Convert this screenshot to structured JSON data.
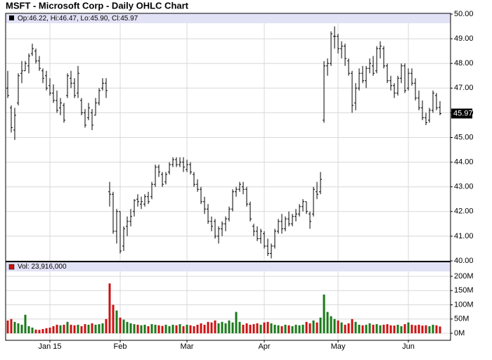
{
  "chart_data": {
    "type": "ohlc",
    "title": "MSFT - Microsoft Corp - Daily OHLC Chart",
    "ohlc_label": "Op:46.22, Hi:46.47, Lo:45.90, Cl:45.97",
    "volume_label": "Vol: 23,916,000",
    "xlim": [
      -0.6,
      126
    ],
    "xticks": [
      {
        "value": 12,
        "label": "Jan 15"
      },
      {
        "value": 32,
        "label": "Feb"
      },
      {
        "value": 51,
        "label": "Mar"
      },
      {
        "value": 73,
        "label": "Apr"
      },
      {
        "value": 94,
        "label": "May"
      },
      {
        "value": 114,
        "label": "Jun"
      }
    ],
    "ylim": [
      40,
      50
    ],
    "yticks": [
      {
        "value": 40,
        "label": "40.00"
      },
      {
        "value": 41,
        "label": "41.00"
      },
      {
        "value": 42,
        "label": "42.00"
      },
      {
        "value": 43,
        "label": "43.00"
      },
      {
        "value": 44,
        "label": "44.00"
      },
      {
        "value": 45,
        "label": "45.00"
      },
      {
        "value": 46,
        "label": "46.00"
      },
      {
        "value": 47,
        "label": "47.00"
      },
      {
        "value": 48,
        "label": "48.00"
      },
      {
        "value": 49,
        "label": "49.00"
      },
      {
        "value": 50,
        "label": "50.00"
      }
    ],
    "y2lim": [
      0,
      200
    ],
    "y2ticks": [
      {
        "value": 0,
        "label": "0M"
      },
      {
        "value": 50,
        "label": "50M"
      },
      {
        "value": 100,
        "label": "100M"
      },
      {
        "value": 150,
        "label": "150M"
      },
      {
        "value": 200,
        "label": "200M"
      }
    ],
    "grid": true,
    "bar_color": "#000000",
    "up_color": "#1a7a1a",
    "down_color": "#cc1111",
    "ohlc": [
      [
        47.0,
        47.7,
        46.6,
        46.7
      ],
      [
        46.2,
        46.3,
        45.2,
        45.4
      ],
      [
        45.3,
        46.2,
        44.9,
        45.9
      ],
      [
        46.4,
        47.6,
        46.3,
        47.5
      ],
      [
        47.6,
        48.1,
        47.2,
        47.7
      ],
      [
        47.7,
        48.1,
        47.7,
        48.0
      ],
      [
        47.9,
        48.4,
        47.6,
        48.3
      ],
      [
        48.4,
        48.8,
        48.3,
        48.6
      ],
      [
        48.5,
        48.6,
        48.0,
        48.1
      ],
      [
        48.1,
        48.3,
        47.7,
        47.8
      ],
      [
        47.7,
        47.8,
        47.2,
        47.4
      ],
      [
        47.5,
        47.7,
        46.9,
        47.0
      ],
      [
        47.1,
        47.4,
        46.7,
        46.8
      ],
      [
        46.8,
        47.15,
        46.4,
        46.5
      ],
      [
        46.5,
        46.9,
        46.0,
        46.1
      ],
      [
        46.2,
        46.6,
        45.9,
        46.4
      ],
      [
        46.3,
        46.4,
        45.6,
        45.7
      ],
      [
        46.7,
        47.6,
        46.6,
        47.5
      ],
      [
        47.4,
        47.7,
        47.0,
        47.2
      ],
      [
        47.2,
        47.4,
        46.6,
        46.7
      ],
      [
        46.8,
        47.9,
        46.6,
        47.6
      ],
      [
        46.5,
        46.6,
        45.9,
        46.0
      ],
      [
        46.0,
        46.15,
        45.4,
        45.5
      ],
      [
        45.8,
        46.4,
        45.7,
        46.2
      ],
      [
        46.0,
        46.15,
        45.3,
        45.5
      ],
      [
        45.9,
        46.6,
        45.9,
        46.4
      ],
      [
        46.4,
        47.0,
        46.3,
        46.9
      ],
      [
        47.0,
        47.4,
        46.9,
        47.2
      ],
      [
        47.2,
        47.4,
        46.6,
        46.9
      ],
      [
        42.8,
        43.2,
        42.2,
        42.7
      ],
      [
        42.7,
        42.8,
        41.1,
        41.2
      ],
      [
        41.2,
        42.1,
        40.7,
        42.0
      ],
      [
        42.0,
        42.0,
        40.3,
        40.4
      ],
      [
        40.6,
        41.4,
        40.4,
        41.3
      ],
      [
        41.4,
        41.8,
        41.0,
        41.6
      ],
      [
        41.6,
        42.1,
        41.4,
        41.8
      ],
      [
        42.0,
        42.5,
        41.8,
        42.45
      ],
      [
        42.5,
        42.7,
        42.2,
        42.4
      ],
      [
        42.3,
        42.6,
        42.1,
        42.4
      ],
      [
        42.3,
        42.7,
        42.2,
        42.6
      ],
      [
        42.6,
        42.8,
        42.3,
        42.4
      ],
      [
        42.6,
        43.2,
        42.5,
        43.1
      ],
      [
        43.1,
        43.9,
        43.0,
        43.8
      ],
      [
        43.8,
        43.9,
        43.4,
        43.6
      ],
      [
        43.5,
        43.6,
        43.0,
        43.1
      ],
      [
        43.2,
        43.6,
        43.1,
        43.5
      ],
      [
        43.6,
        44.0,
        43.5,
        43.9
      ],
      [
        43.9,
        44.2,
        43.8,
        44.1
      ],
      [
        44.1,
        44.2,
        43.8,
        43.9
      ],
      [
        43.9,
        44.2,
        43.8,
        44.0
      ],
      [
        44.0,
        44.2,
        43.6,
        43.8
      ],
      [
        43.7,
        44.1,
        43.6,
        43.9
      ],
      [
        43.9,
        44.0,
        43.5,
        43.6
      ],
      [
        43.5,
        43.6,
        43.0,
        43.1
      ],
      [
        43.1,
        43.3,
        42.8,
        42.9
      ],
      [
        42.9,
        43.0,
        42.3,
        42.4
      ],
      [
        42.4,
        42.6,
        41.9,
        42.1
      ],
      [
        42.1,
        42.3,
        41.5,
        41.6
      ],
      [
        41.6,
        41.8,
        41.2,
        41.4
      ],
      [
        41.6,
        41.7,
        40.9,
        41.0
      ],
      [
        41.0,
        41.4,
        40.7,
        41.3
      ],
      [
        41.3,
        41.6,
        41.0,
        41.5
      ],
      [
        41.5,
        41.8,
        41.2,
        41.7
      ],
      [
        41.7,
        42.2,
        41.6,
        42.1
      ],
      [
        42.1,
        42.9,
        42.0,
        42.8
      ],
      [
        42.8,
        43.0,
        42.6,
        42.9
      ],
      [
        42.9,
        43.2,
        42.8,
        43.1
      ],
      [
        43.0,
        43.2,
        42.7,
        42.9
      ],
      [
        42.9,
        43.0,
        42.2,
        42.3
      ],
      [
        42.3,
        42.4,
        41.6,
        41.7
      ],
      [
        41.4,
        41.5,
        41.0,
        41.2
      ],
      [
        41.2,
        41.4,
        40.8,
        40.9
      ],
      [
        40.9,
        41.3,
        40.7,
        41.2
      ],
      [
        41.1,
        41.2,
        40.5,
        40.6
      ],
      [
        40.6,
        40.9,
        40.2,
        40.3
      ],
      [
        40.3,
        40.7,
        40.1,
        40.6
      ],
      [
        40.6,
        41.3,
        40.5,
        41.2
      ],
      [
        41.2,
        41.7,
        41.1,
        41.6
      ],
      [
        41.6,
        41.9,
        41.1,
        41.3
      ],
      [
        41.3,
        41.8,
        41.2,
        41.7
      ],
      [
        41.7,
        42.0,
        41.4,
        41.5
      ],
      [
        41.5,
        41.9,
        41.4,
        41.8
      ],
      [
        41.8,
        42.1,
        41.6,
        41.9
      ],
      [
        41.9,
        42.3,
        41.8,
        42.2
      ],
      [
        42.2,
        42.5,
        42.0,
        42.4
      ],
      [
        42.4,
        42.4,
        41.9,
        42.0
      ],
      [
        41.9,
        42.0,
        41.3,
        41.6
      ],
      [
        41.9,
        43.0,
        41.8,
        42.9
      ],
      [
        42.8,
        43.2,
        42.5,
        42.7
      ],
      [
        42.8,
        43.6,
        42.7,
        43.3
      ],
      [
        45.7,
        48.1,
        45.6,
        47.9
      ],
      [
        47.9,
        48.2,
        47.5,
        48.0
      ],
      [
        48.0,
        49.3,
        47.9,
        49.2
      ],
      [
        49.1,
        49.5,
        48.6,
        49.1
      ],
      [
        49.1,
        49.2,
        48.4,
        48.6
      ],
      [
        48.6,
        48.9,
        48.2,
        48.7
      ],
      [
        48.7,
        48.8,
        47.9,
        48.2
      ],
      [
        48.1,
        48.2,
        47.5,
        47.6
      ],
      [
        47.6,
        47.7,
        46.0,
        46.3
      ],
      [
        46.4,
        47.2,
        46.1,
        47.0
      ],
      [
        47.0,
        47.8,
        46.9,
        47.6
      ],
      [
        47.6,
        47.9,
        47.2,
        47.3
      ],
      [
        47.3,
        47.9,
        47.0,
        47.8
      ],
      [
        47.8,
        48.2,
        47.6,
        48.0
      ],
      [
        47.9,
        48.3,
        47.5,
        47.6
      ],
      [
        47.7,
        48.7,
        47.6,
        48.6
      ],
      [
        48.6,
        48.9,
        48.2,
        48.7
      ],
      [
        48.6,
        48.7,
        47.8,
        47.9
      ],
      [
        47.9,
        48.0,
        47.2,
        47.3
      ],
      [
        47.3,
        47.5,
        46.9,
        47.1
      ],
      [
        47.1,
        47.2,
        46.6,
        46.8
      ],
      [
        46.8,
        47.5,
        46.7,
        47.4
      ],
      [
        47.4,
        48.0,
        47.2,
        47.9
      ],
      [
        47.9,
        48.0,
        46.8,
        46.9
      ],
      [
        47.0,
        47.8,
        46.9,
        47.6
      ],
      [
        47.6,
        47.8,
        47.1,
        47.2
      ],
      [
        47.2,
        47.4,
        46.5,
        46.6
      ],
      [
        46.6,
        46.9,
        46.1,
        46.2
      ],
      [
        46.2,
        46.5,
        45.7,
        45.8
      ],
      [
        45.8,
        46.0,
        45.5,
        45.6
      ],
      [
        45.7,
        46.2,
        45.6,
        46.1
      ],
      [
        46.1,
        46.9,
        46.0,
        46.8
      ],
      [
        46.7,
        46.8,
        46.1,
        46.2
      ],
      [
        46.22,
        46.47,
        45.9,
        45.97
      ]
    ],
    "volume": [
      45,
      50,
      40,
      35,
      30,
      65,
      25,
      20,
      13,
      12,
      15,
      18,
      20,
      25,
      30,
      28,
      30,
      40,
      30,
      28,
      30,
      25,
      32,
      30,
      35,
      30,
      32,
      35,
      50,
      175,
      100,
      80,
      55,
      48,
      40,
      35,
      32,
      30,
      28,
      30,
      25,
      32,
      30,
      28,
      26,
      30,
      25,
      30,
      28,
      32,
      25,
      30,
      28,
      25,
      30,
      35,
      30,
      40,
      38,
      45,
      35,
      40,
      35,
      45,
      38,
      75,
      40,
      30,
      35,
      30,
      32,
      35,
      30,
      38,
      40,
      35,
      30,
      28,
      25,
      30,
      28,
      25,
      30,
      28,
      30,
      40,
      35,
      45,
      38,
      55,
      136,
      75,
      60,
      50,
      45,
      38,
      30,
      35,
      50,
      40,
      30,
      28,
      30,
      35,
      30,
      32,
      28,
      30,
      32,
      28,
      27,
      30,
      25,
      32,
      38,
      30,
      28,
      30,
      27,
      28,
      25,
      30,
      28,
      23.916
    ]
  }
}
